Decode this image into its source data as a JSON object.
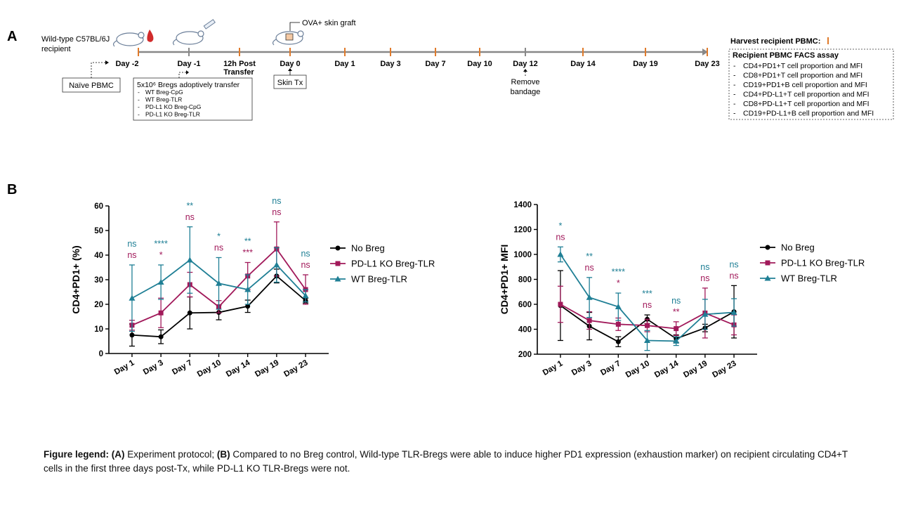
{
  "panel_a": {
    "letter": "A",
    "recipient_label_1": "Wild-type C57BL/6J",
    "recipient_label_2": "recipient",
    "graft_label": "OVA+ skin graft",
    "timeline_days": [
      "Day -2",
      "Day -1",
      "12h Post",
      "Day 0",
      "Day 1",
      "Day 3",
      "Day 7",
      "Day 10",
      "Day 12",
      "Day 14",
      "Day 19",
      "Day 23"
    ],
    "transfer_label": "Transfer",
    "naive_pbmc": "Naïve PBMC",
    "skin_tx": "Skin Tx",
    "remove_1": "Remove",
    "remove_2": "bandage",
    "adoptive_title": "5x10⁶ Bregs adoptively transfer",
    "adoptive_items": [
      "WT Breg-CpG",
      "WT Breg-TLR",
      "PD-L1 KO Breg-CpG",
      "PD-L1 KO Breg-TLR"
    ],
    "harvest_title": "Harvest recipient PBMC:",
    "facs_title": "Recipient PBMC FACS assay",
    "facs_items": [
      "CD4+PD1+T cell proportion and MFI",
      "CD8+PD1+T cell proportion and MFI",
      "CD19+PD1+B cell proportion and MFI",
      "CD4+PD-L1+T cell proportion and MFI",
      "CD8+PD-L1+T cell proportion and MFI",
      "CD19+PD-L1+B cell proportion and MFI"
    ]
  },
  "panel_b": {
    "letter": "B"
  },
  "chart_data": [
    {
      "type": "line",
      "ylabel": "CD4+PD1+ (%)",
      "ylim": [
        0,
        60
      ],
      "yticks": [
        0,
        10,
        20,
        30,
        40,
        50,
        60
      ],
      "categories": [
        "Day 1",
        "Day 3",
        "Day 7",
        "Day 10",
        "Day 14",
        "Day 19",
        "Day 23"
      ],
      "series": [
        {
          "name": "No Breg",
          "color": "#000000",
          "marker": "circle",
          "values": [
            7.5,
            6.8,
            16.5,
            16.7,
            19.2,
            31.5,
            21.5
          ],
          "err": [
            4.5,
            2.8,
            6.5,
            3.0,
            2.5,
            2.8,
            1.0
          ]
        },
        {
          "name": "PD-L1 KO Breg-TLR",
          "color": "#a1195a",
          "marker": "square",
          "values": [
            11.5,
            16.5,
            28,
            19,
            31.5,
            42.5,
            26
          ],
          "err": [
            2.0,
            6.0,
            5.0,
            2.5,
            5.5,
            11.0,
            6.0
          ]
        },
        {
          "name": "WT Breg-TLR",
          "color": "#1f7f95",
          "marker": "triangle",
          "values": [
            22.5,
            29,
            38,
            28.5,
            26,
            36,
            23.5
          ],
          "err": [
            13.5,
            7.0,
            13.5,
            10.5,
            6.0,
            7.0,
            2.5
          ]
        }
      ],
      "annotations_teal": [
        "ns",
        "****",
        "**",
        "*",
        "**",
        "ns",
        "ns"
      ],
      "annotations_maroon": [
        "ns",
        "*",
        "ns",
        "ns",
        "***",
        "ns",
        "ns"
      ],
      "legend_position": "right"
    },
    {
      "type": "line",
      "ylabel": "CD4+PD1+ MFI",
      "ylim": [
        200,
        1400
      ],
      "yticks": [
        200,
        400,
        600,
        800,
        1000,
        1200,
        1400
      ],
      "categories": [
        "Day 1",
        "Day 3",
        "Day 7",
        "Day 10",
        "Day 14",
        "Day 19",
        "Day 23"
      ],
      "series": [
        {
          "name": "No Breg",
          "color": "#000000",
          "marker": "circle",
          "values": [
            590,
            425,
            300,
            480,
            325,
            410,
            540
          ],
          "err": [
            280,
            110,
            40,
            35,
            30,
            30,
            210
          ]
        },
        {
          "name": "PD-L1 KO Breg-TLR",
          "color": "#a1195a",
          "marker": "square",
          "values": [
            600,
            470,
            440,
            430,
            405,
            530,
            435
          ],
          "err": [
            145,
            70,
            50,
            50,
            55,
            200,
            80
          ]
        },
        {
          "name": "WT Breg-TLR",
          "color": "#1f7f95",
          "marker": "triangle",
          "values": [
            1000,
            655,
            580,
            310,
            305,
            520,
            535
          ],
          "err": [
            60,
            160,
            110,
            80,
            35,
            120,
            110
          ]
        }
      ],
      "annotations_teal": [
        "*",
        "**",
        "****",
        "***",
        "ns",
        "ns",
        "ns"
      ],
      "annotations_maroon": [
        "ns",
        "ns",
        "*",
        "ns",
        "**",
        "ns",
        "ns"
      ],
      "legend_position": "right"
    }
  ],
  "figure_legend": {
    "label": "Figure legend:",
    "part_a_tag": "(A)",
    "part_a": "Experiment protocol;",
    "part_b_tag": "(B)",
    "part_b": "Compared to no Breg control, Wild-type TLR-Bregs were able to induce higher PD1 expression (exhaustion marker)  on recipient circulating CD4+T cells in the first three days post-Tx, while PD-L1 KO TLR-Bregs were not."
  }
}
